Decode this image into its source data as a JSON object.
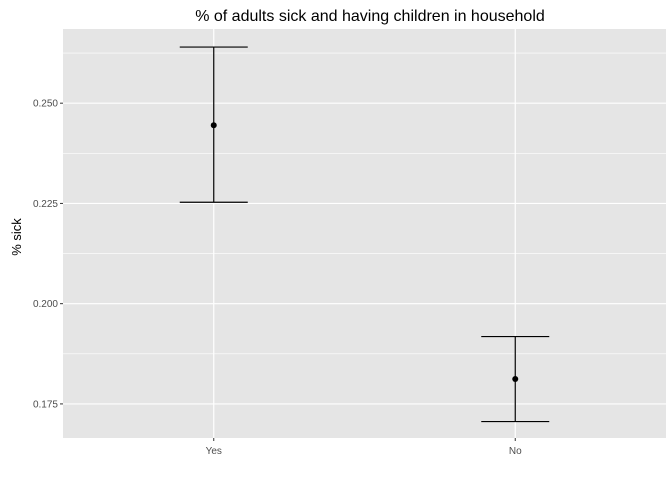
{
  "chart_data": {
    "type": "errorbar",
    "title": "% of adults sick and having children in household",
    "xlabel": "",
    "ylabel": "% sick",
    "categories": [
      "Yes",
      "No"
    ],
    "points": [
      {
        "category": "Yes",
        "value": 0.2445,
        "lower": 0.2253,
        "upper": 0.264
      },
      {
        "category": "No",
        "value": 0.1812,
        "lower": 0.1706,
        "upper": 0.1918
      }
    ],
    "yticks": [
      0.175,
      0.2,
      0.225,
      0.25
    ],
    "ytick_labels": [
      "0.175",
      "0.200",
      "0.225",
      "0.250"
    ],
    "ylim": [
      0.1665,
      0.2685
    ],
    "grid": true,
    "colors": {
      "panel": "#e5e5e5",
      "grid": "#ffffff",
      "mark": "#000000",
      "tick_label": "#4d4d4d"
    }
  }
}
